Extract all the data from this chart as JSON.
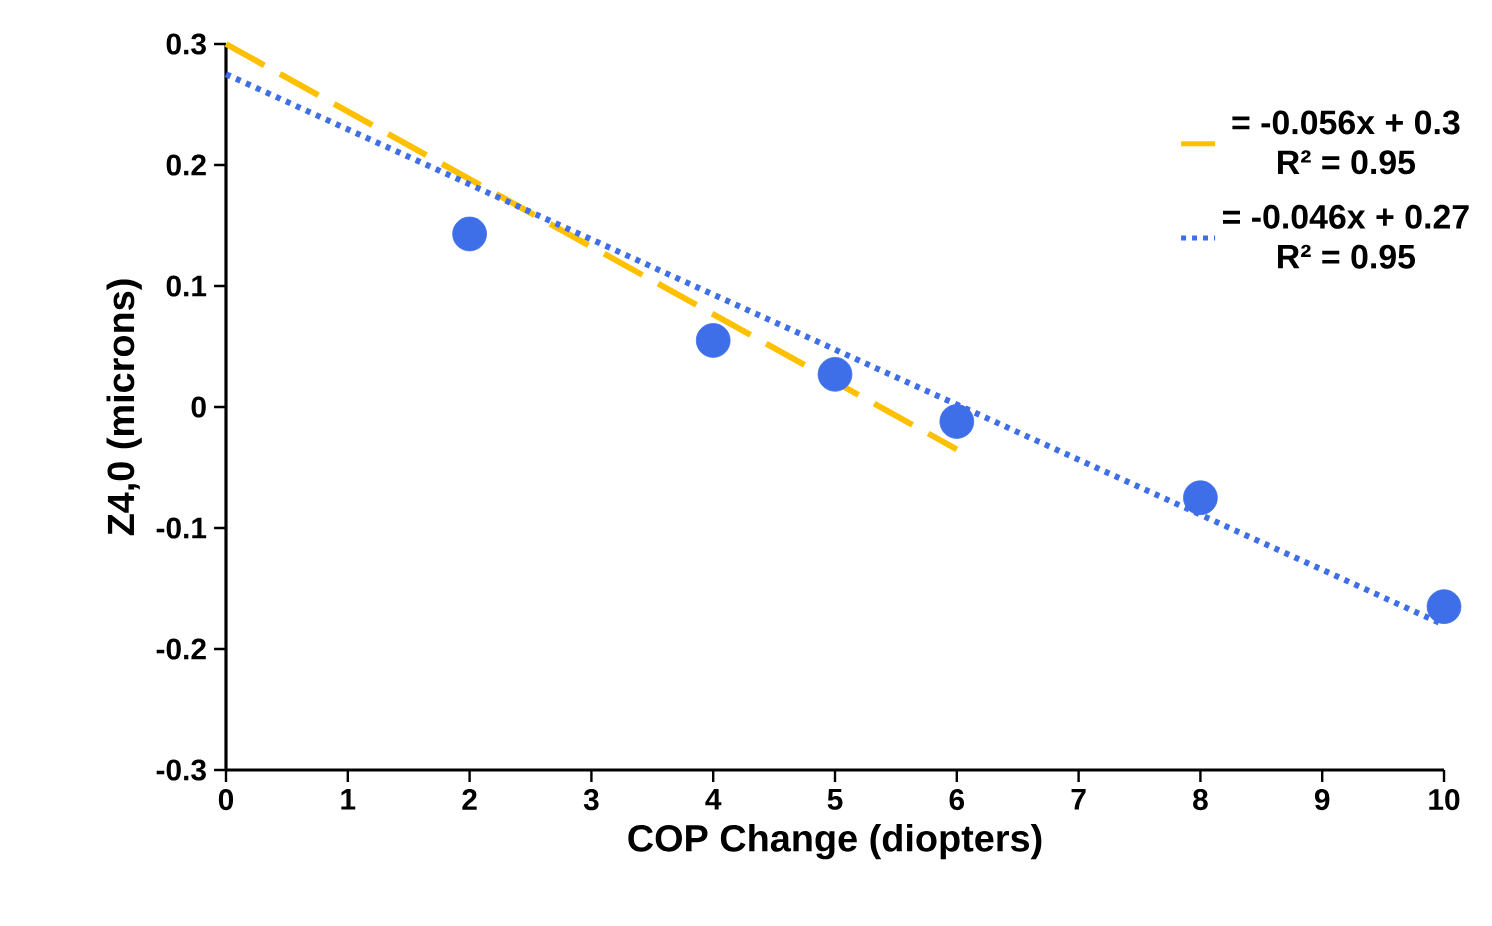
{
  "chart_data": {
    "type": "scatter",
    "xlabel": "COP Change (diopters)",
    "ylabel": "Z4,0 (microns)",
    "xlim": [
      0,
      10
    ],
    "ylim": [
      -0.3,
      0.3
    ],
    "xticks": [
      0,
      1,
      2,
      3,
      4,
      5,
      6,
      7,
      8,
      9,
      10
    ],
    "yticks": [
      -0.3,
      -0.2,
      -0.1,
      0,
      0.1,
      0.2,
      0.3
    ],
    "grid": false,
    "legend": "top right",
    "series": [
      {
        "color": "#3f6fe8",
        "marker": "circle",
        "x": [
          2,
          4,
          5,
          6,
          8,
          10
        ],
        "values": [
          0.143,
          0.055,
          0.027,
          -0.012,
          -0.075,
          -0.165
        ]
      },
      {
        "type": "line",
        "name": "= -0.056x + 0.3",
        "color": "#ffc000",
        "line_style": "dashed",
        "marker": "none",
        "x": [
          0,
          6
        ],
        "values": [
          0.3,
          -0.035
        ]
      },
      {
        "type": "line",
        "name": "= -0.046x + 0.27",
        "color": "#3f6fe8",
        "line_style": "dotted",
        "marker": "none",
        "x": [
          0,
          10
        ],
        "values": [
          0.275,
          -0.18
        ]
      }
    ],
    "annotations": [
      "R² = 0.95",
      "R² = 0.95"
    ]
  }
}
